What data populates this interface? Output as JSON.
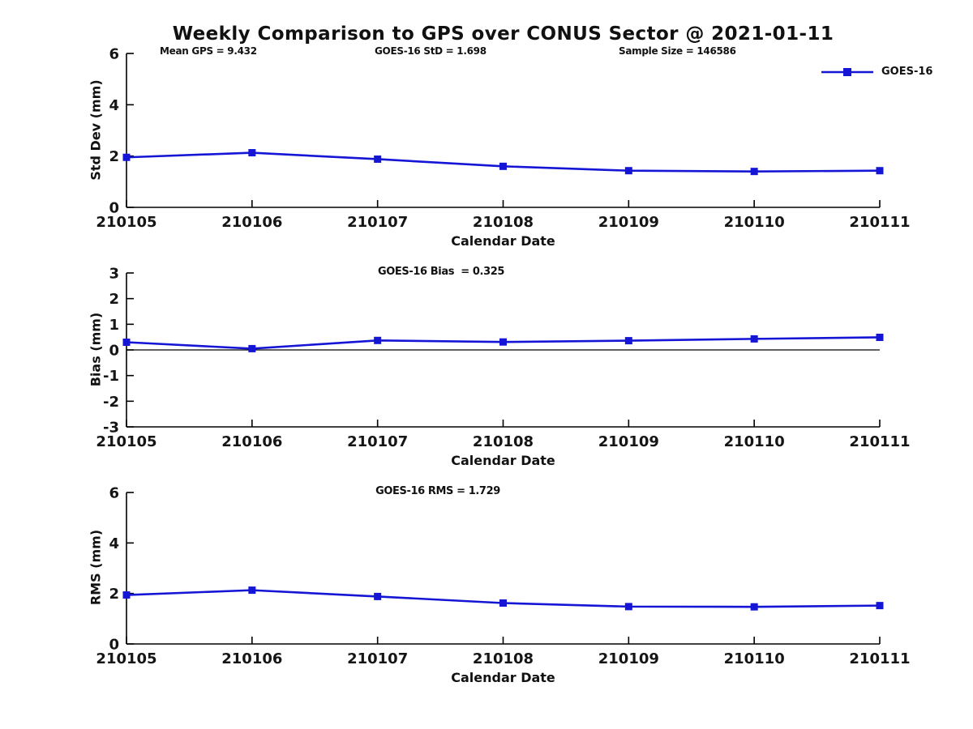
{
  "title": "Weekly Comparison to GPS over CONUS Sector @ 2021-01-11",
  "legend": {
    "label": "GOES-16",
    "position": "top-right"
  },
  "colors": {
    "line": "#1515d6",
    "marker": "#1515d6",
    "axis": "#000000",
    "text": "#111111",
    "background": "#ffffff"
  },
  "chart_data": [
    {
      "type": "line",
      "name": "std-dev",
      "annotations": [
        "Mean GPS = 9.432",
        "GOES-16 StD = 1.698",
        "Sample Size = 146586"
      ],
      "ylabel": "Std Dev (mm)",
      "xlabel": "Calendar Date",
      "categories": [
        "210105",
        "210106",
        "210107",
        "210108",
        "210109",
        "210110",
        "210111"
      ],
      "series": [
        {
          "name": "GOES-16",
          "values": [
            1.95,
            2.13,
            1.88,
            1.6,
            1.43,
            1.4,
            1.43
          ]
        }
      ],
      "ylim": [
        0,
        6
      ],
      "yticks": [
        0,
        2,
        4,
        6
      ],
      "grid": false,
      "zero_line": false
    },
    {
      "type": "line",
      "name": "bias",
      "title": "GOES-16 Bias  = 0.325",
      "ylabel": "Bias (mm)",
      "xlabel": "Calendar Date",
      "categories": [
        "210105",
        "210106",
        "210107",
        "210108",
        "210109",
        "210110",
        "210111"
      ],
      "series": [
        {
          "name": "GOES-16",
          "values": [
            0.3,
            0.05,
            0.37,
            0.31,
            0.36,
            0.43,
            0.49
          ]
        }
      ],
      "ylim": [
        -3,
        3
      ],
      "yticks": [
        -3,
        -2,
        -1,
        0,
        1,
        2,
        3
      ],
      "grid": false,
      "zero_line": true
    },
    {
      "type": "line",
      "name": "rms",
      "title": "GOES-16 RMS = 1.729",
      "ylabel": "RMS (mm)",
      "xlabel": "Calendar Date",
      "categories": [
        "210105",
        "210106",
        "210107",
        "210108",
        "210109",
        "210110",
        "210111"
      ],
      "series": [
        {
          "name": "GOES-16",
          "values": [
            1.94,
            2.13,
            1.88,
            1.62,
            1.48,
            1.47,
            1.52
          ]
        }
      ],
      "ylim": [
        0,
        6
      ],
      "yticks": [
        0,
        2,
        4,
        6
      ],
      "grid": false,
      "zero_line": false
    }
  ]
}
